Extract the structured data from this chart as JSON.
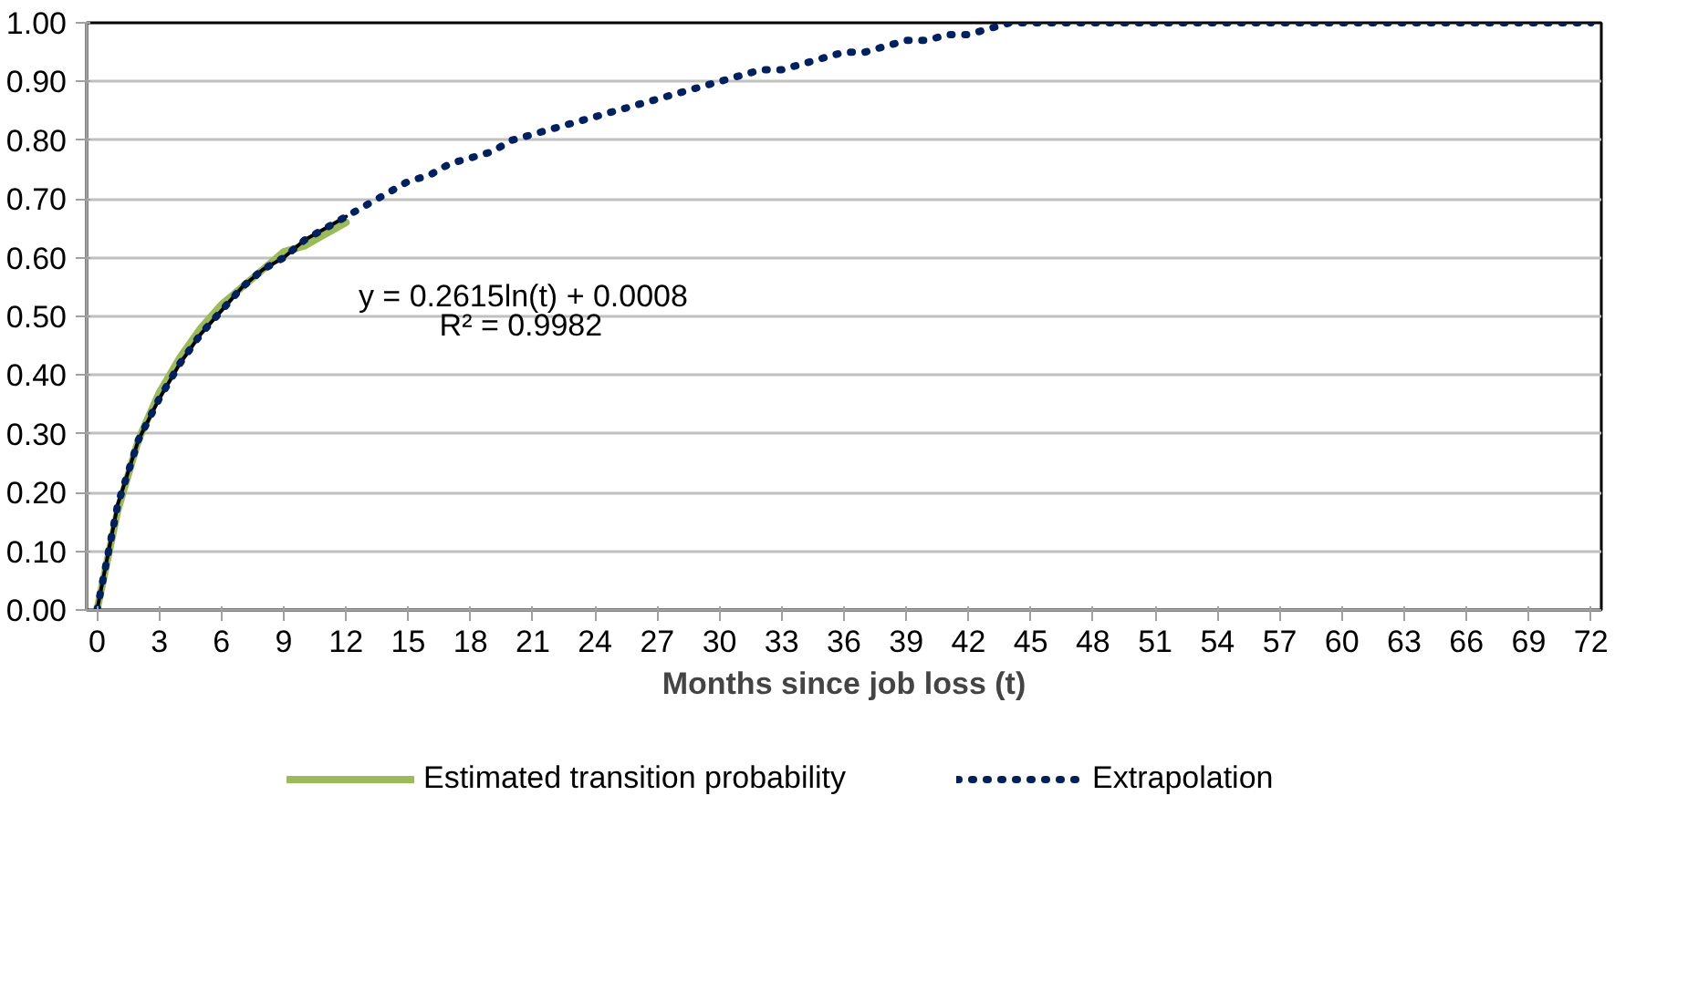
{
  "chart_data": {
    "type": "line",
    "xlabel": "Months since job loss (t)",
    "x": [
      0,
      1,
      2,
      3,
      4,
      5,
      6,
      7,
      8,
      9,
      10,
      11,
      12,
      13,
      14,
      15,
      16,
      17,
      18,
      19,
      20,
      21,
      22,
      23,
      24,
      25,
      26,
      27,
      28,
      29,
      30,
      31,
      32,
      33,
      34,
      35,
      36,
      37,
      38,
      39,
      40,
      41,
      42,
      43,
      44,
      45,
      46,
      47,
      48,
      49,
      50,
      51,
      52,
      53,
      54,
      55,
      56,
      57,
      58,
      59,
      60,
      61,
      62,
      63,
      64,
      65,
      66,
      67,
      68,
      69,
      70,
      71,
      72
    ],
    "series": [
      {
        "name": "Estimated transition probability",
        "color": "#9bbb59",
        "line_style": "solid",
        "x": [
          0,
          1,
          2,
          3,
          4,
          5,
          6,
          7,
          8,
          9,
          10,
          11,
          12
        ],
        "values": [
          0,
          0.17,
          0.29,
          0.37,
          0.43,
          0.48,
          0.52,
          0.55,
          0.58,
          0.61,
          0.62,
          0.64,
          0.66
        ]
      },
      {
        "color": "#000000",
        "line_style": "solid",
        "x": [
          0,
          1,
          2,
          3,
          4,
          5,
          6,
          7,
          8,
          9,
          10,
          11,
          12
        ],
        "values": [
          0.0,
          0.18,
          0.29,
          0.36,
          0.42,
          0.47,
          0.51,
          0.55,
          0.58,
          0.6,
          0.63,
          0.65,
          0.67
        ]
      },
      {
        "name": "Extrapolation",
        "color": "#002060",
        "line_style": "dotted",
        "values": [
          0,
          0.18,
          0.29,
          0.36,
          0.42,
          0.47,
          0.51,
          0.55,
          0.58,
          0.6,
          0.63,
          0.65,
          0.67,
          0.69,
          0.71,
          0.73,
          0.74,
          0.76,
          0.77,
          0.78,
          0.8,
          0.81,
          0.82,
          0.83,
          0.84,
          0.85,
          0.86,
          0.87,
          0.88,
          0.89,
          0.9,
          0.91,
          0.92,
          0.92,
          0.93,
          0.94,
          0.95,
          0.95,
          0.96,
          0.97,
          0.97,
          0.98,
          0.98,
          0.99,
          1.0,
          1.0,
          1.0,
          1.0,
          1.0,
          1.0,
          1.0,
          1.0,
          1.0,
          1.0,
          1.0,
          1.0,
          1.0,
          1.0,
          1.0,
          1.0,
          1.0,
          1.0,
          1.0,
          1.0,
          1.0,
          1.0,
          1.0,
          1.0,
          1.0,
          1.0,
          1.0,
          1.0,
          1.0
        ]
      }
    ],
    "xlim": [
      -0.5,
      72.5
    ],
    "xticks": [
      0,
      3,
      6,
      9,
      12,
      15,
      18,
      21,
      24,
      27,
      30,
      33,
      36,
      39,
      42,
      45,
      48,
      51,
      54,
      57,
      60,
      63,
      66,
      69,
      72
    ],
    "ylim": [
      0,
      1
    ],
    "yticks": [
      {
        "value": 0,
        "label": "0.00"
      },
      {
        "value": 0.1,
        "label": "0.10"
      },
      {
        "value": 0.2,
        "label": "0.20"
      },
      {
        "value": 0.3,
        "label": "0.30"
      },
      {
        "value": 0.4,
        "label": "0.40"
      },
      {
        "value": 0.5,
        "label": "0.50"
      },
      {
        "value": 0.6,
        "label": "0.60"
      },
      {
        "value": 0.7,
        "label": "0.70"
      },
      {
        "value": 0.8,
        "label": "0.80"
      },
      {
        "value": 0.9,
        "label": "0.90"
      },
      {
        "value": 1,
        "label": "1.00"
      }
    ],
    "annotations": [
      "y = 0.2615ln(t) + 0.0008",
      "R² = 0.9982"
    ],
    "grid": "y",
    "legend": "bottom",
    "marker": "none"
  }
}
